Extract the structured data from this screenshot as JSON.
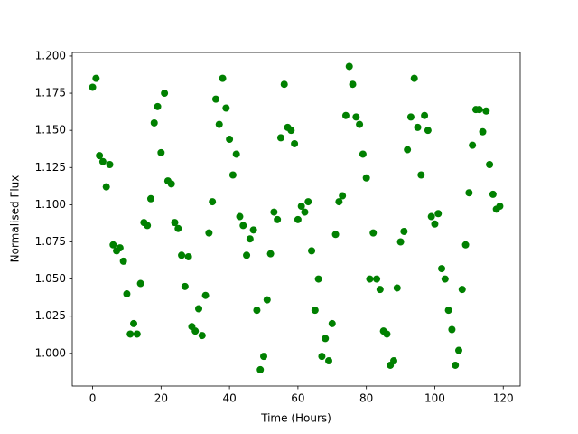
{
  "chart_data": {
    "type": "scatter",
    "xlabel": "Time (Hours)",
    "ylabel": "Normalised Flux",
    "color": "#008000",
    "x": [
      0,
      1,
      2,
      3,
      4,
      5,
      6,
      7,
      8,
      9,
      10,
      11,
      12,
      13,
      14,
      15,
      16,
      17,
      18,
      19,
      20,
      21,
      22,
      23,
      24,
      25,
      26,
      27,
      28,
      29,
      30,
      31,
      32,
      33,
      34,
      35,
      36,
      37,
      38,
      39,
      40,
      41,
      42,
      43,
      44,
      45,
      46,
      47,
      48,
      49,
      50,
      51,
      52,
      53,
      54,
      55,
      56,
      57,
      58,
      59,
      60,
      61,
      62,
      63,
      64,
      65,
      66,
      67,
      68,
      69,
      70,
      71,
      72,
      73,
      74,
      75,
      76,
      77,
      78,
      79,
      80,
      81,
      82,
      83,
      84,
      85,
      86,
      87,
      88,
      89,
      90,
      91,
      92,
      93,
      94,
      95,
      96,
      97,
      98,
      99,
      100,
      101,
      102,
      103,
      104,
      105,
      106,
      107,
      108,
      109,
      110,
      111,
      112,
      113,
      114,
      115,
      116,
      117,
      118,
      119
    ],
    "values": [
      1.179,
      1.185,
      1.133,
      1.129,
      1.112,
      1.127,
      1.073,
      1.069,
      1.071,
      1.062,
      1.04,
      1.013,
      1.02,
      1.013,
      1.047,
      1.088,
      1.086,
      1.104,
      1.155,
      1.166,
      1.135,
      1.175,
      1.116,
      1.114,
      1.088,
      1.084,
      1.066,
      1.045,
      1.065,
      1.018,
      1.015,
      1.03,
      1.012,
      1.039,
      1.081,
      1.102,
      1.171,
      1.154,
      1.185,
      1.165,
      1.144,
      1.12,
      1.134,
      1.092,
      1.086,
      1.066,
      1.077,
      1.083,
      1.029,
      0.989,
      0.998,
      1.036,
      1.067,
      1.095,
      1.09,
      1.145,
      1.181,
      1.152,
      1.15,
      1.141,
      1.09,
      1.099,
      1.095,
      1.102,
      1.069,
      1.029,
      1.05,
      0.998,
      1.01,
      0.995,
      1.02,
      1.08,
      1.102,
      1.106,
      1.16,
      1.193,
      1.181,
      1.159,
      1.154,
      1.134,
      1.118,
      1.05,
      1.081,
      1.05,
      1.043,
      1.015,
      1.013,
      0.992,
      0.995,
      1.044,
      1.075,
      1.082,
      1.137,
      1.159,
      1.185,
      1.152,
      1.12,
      1.16,
      1.15,
      1.092,
      1.087,
      1.094,
      1.057,
      1.05,
      1.029,
      1.016,
      0.992,
      1.002,
      1.043,
      1.073,
      1.108,
      1.14,
      1.164,
      1.164,
      1.149,
      1.163,
      1.127,
      1.107,
      1.097,
      1.099
    ],
    "xlim": [
      -5.95,
      124.95
    ],
    "ylim": [
      0.978,
      1.2024
    ],
    "xticks": [
      0,
      20,
      40,
      60,
      80,
      100,
      120
    ],
    "yticks": [
      {
        "value": 1.0,
        "label": "1.000"
      },
      {
        "value": 1.025,
        "label": "1.025"
      },
      {
        "value": 1.05,
        "label": "1.050"
      },
      {
        "value": 1.075,
        "label": "1.075"
      },
      {
        "value": 1.1,
        "label": "1.100"
      },
      {
        "value": 1.125,
        "label": "1.125"
      },
      {
        "value": 1.15,
        "label": "1.150"
      },
      {
        "value": 1.175,
        "label": "1.175"
      },
      {
        "value": 1.2,
        "label": "1.200"
      }
    ]
  }
}
